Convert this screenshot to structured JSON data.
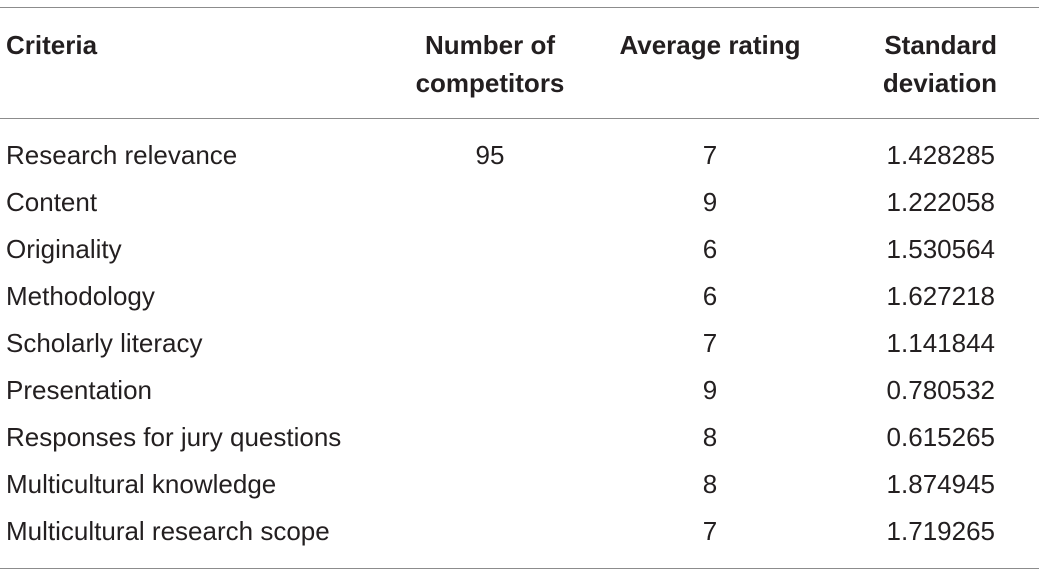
{
  "table": {
    "headers": {
      "criteria": "Criteria",
      "competitors": "Number of competitors",
      "average": "Average rating",
      "stdev": "Standard deviation"
    },
    "rows": [
      {
        "criteria": "Research relevance",
        "competitors": "95",
        "average": "7",
        "stdev": "1.428285"
      },
      {
        "criteria": "Content",
        "competitors": "",
        "average": "9",
        "stdev": "1.222058"
      },
      {
        "criteria": "Originality",
        "competitors": "",
        "average": "6",
        "stdev": "1.530564"
      },
      {
        "criteria": "Methodology",
        "competitors": "",
        "average": "6",
        "stdev": "1.627218"
      },
      {
        "criteria": "Scholarly literacy",
        "competitors": "",
        "average": "7",
        "stdev": "1.141844"
      },
      {
        "criteria": "Presentation",
        "competitors": "",
        "average": "9",
        "stdev": "0.780532"
      },
      {
        "criteria": "Responses for jury questions",
        "competitors": "",
        "average": "8",
        "stdev": "0.615265"
      },
      {
        "criteria": "Multicultural knowledge",
        "competitors": "",
        "average": "8",
        "stdev": "1.874945"
      },
      {
        "criteria": "Multicultural research scope",
        "competitors": "",
        "average": "7",
        "stdev": "1.719265"
      }
    ]
  }
}
